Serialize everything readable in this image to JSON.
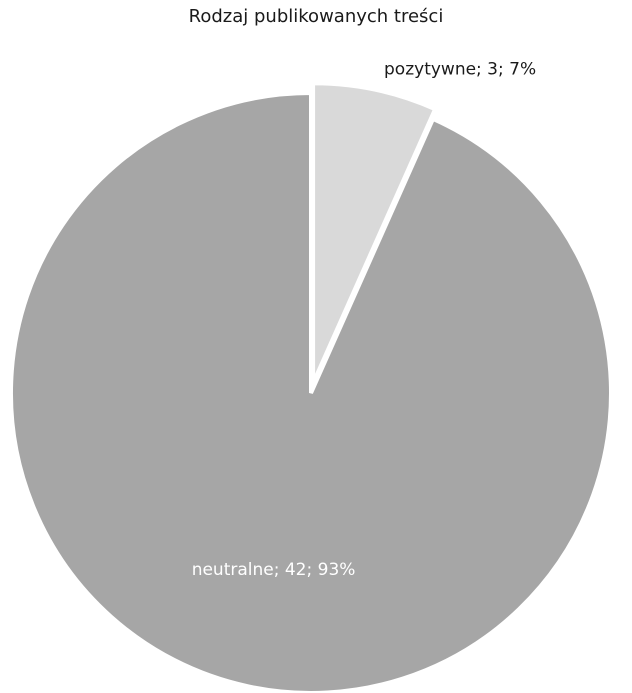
{
  "chart_data": {
    "type": "pie",
    "title": "Rodzaj publikowanych treści",
    "slices": [
      {
        "category": "pozytywne",
        "value": 3,
        "percent": 7,
        "label": "pozytywne; 3; 7%",
        "color": "#d9d9d9",
        "exploded": true,
        "label_position": "outside"
      },
      {
        "category": "neutralne",
        "value": 42,
        "percent": 93,
        "label": "neutralne; 42; 93%",
        "color": "#a6a6a6",
        "exploded": false,
        "label_position": "inside"
      }
    ],
    "start_angle": "12 o'clock",
    "direction": "clockwise",
    "label_text_colors": {
      "inside": "#ffffff",
      "outside": "#1a1a1a"
    }
  }
}
